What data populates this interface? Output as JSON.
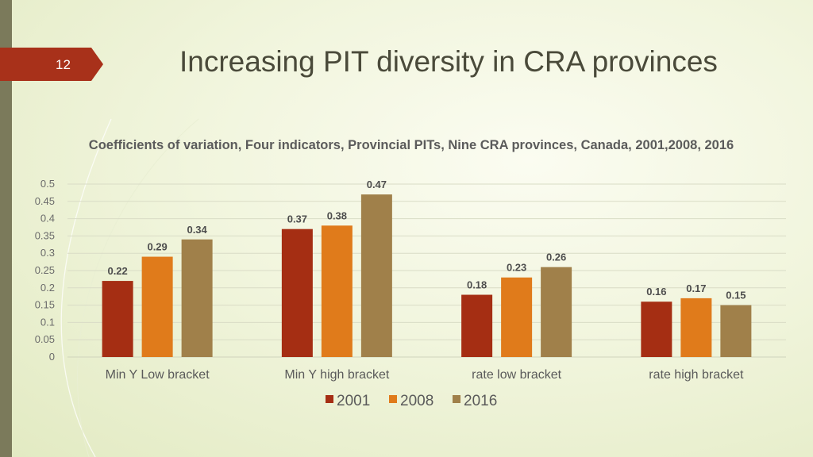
{
  "slide": {
    "number": "12",
    "title": "Increasing PIT diversity in CRA provinces"
  },
  "colors": {
    "accent": "#a8311a",
    "series": [
      "#a52e13",
      "#e07b1b",
      "#a0804a"
    ]
  },
  "chart_data": {
    "type": "bar",
    "title": "Coefficients of variation, Four indicators, Provincial PITs, Nine CRA provinces, Canada, 2001,2008, 2016",
    "categories": [
      "Min Y Low bracket",
      "Min Y high bracket",
      "rate low bracket",
      "rate high bracket"
    ],
    "series": [
      {
        "name": "2001",
        "values": [
          0.22,
          0.37,
          0.18,
          0.16
        ]
      },
      {
        "name": "2008",
        "values": [
          0.29,
          0.38,
          0.23,
          0.17
        ]
      },
      {
        "name": "2016",
        "values": [
          0.34,
          0.47,
          0.26,
          0.15
        ]
      }
    ],
    "yticks": [
      "0",
      "0.05",
      "0.1",
      "0.15",
      "0.2",
      "0.25",
      "0.3",
      "0.35",
      "0.4",
      "0.45",
      "0.5"
    ],
    "ylim": [
      0,
      0.5
    ],
    "grid": true,
    "legend": "bottom"
  }
}
